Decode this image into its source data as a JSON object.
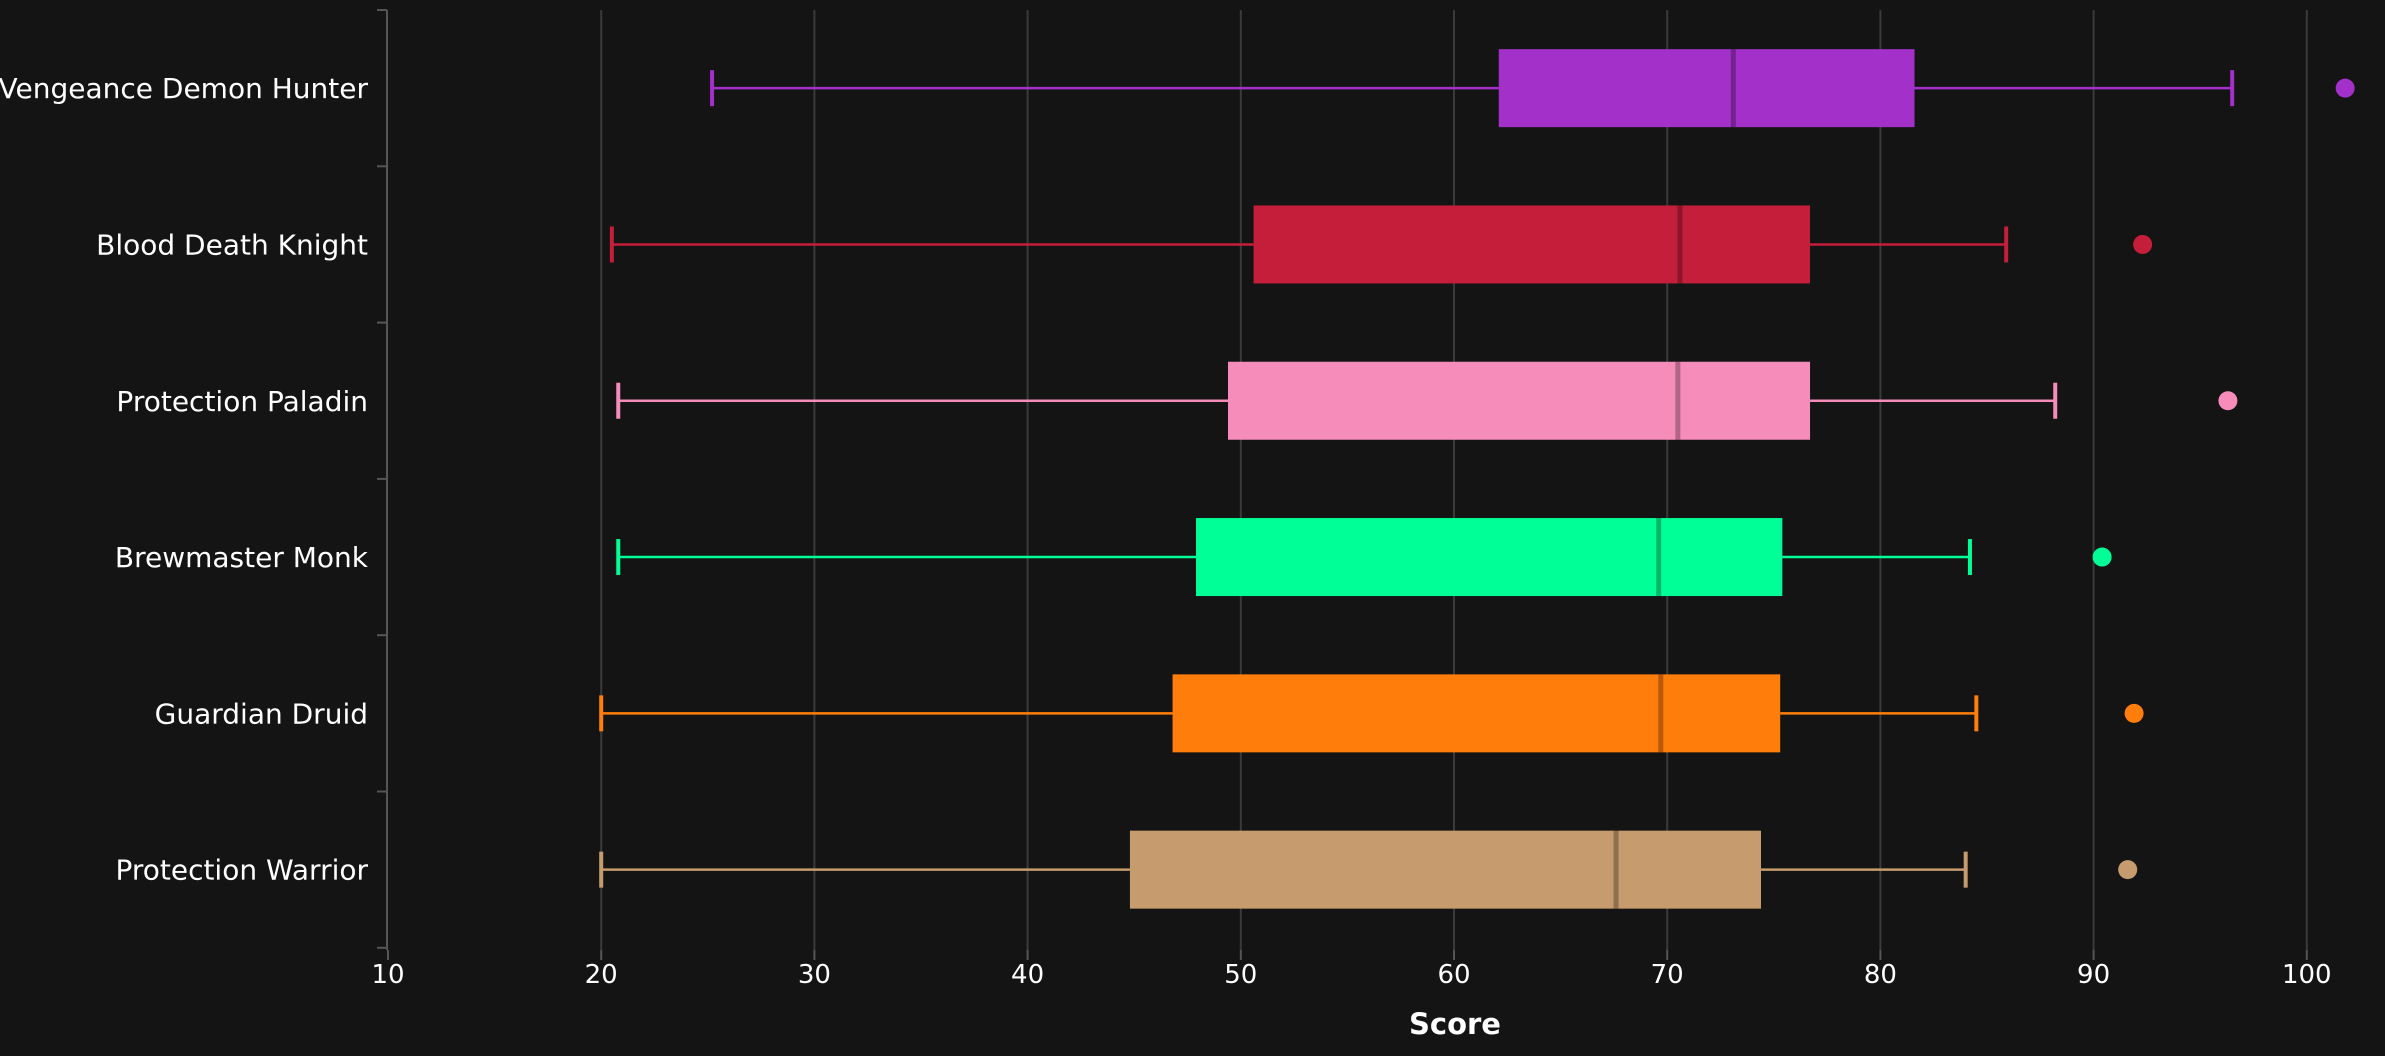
{
  "chart_data": {
    "type": "boxplot",
    "orientation": "horizontal",
    "xlabel": "Score",
    "xlim": [
      10,
      102
    ],
    "xticks": [
      10,
      20,
      30,
      40,
      50,
      60,
      70,
      80,
      90,
      100
    ],
    "grid": true,
    "series": [
      {
        "name": "Vengeance Demon Hunter",
        "color": "#a330c9",
        "whisker_low": 25.2,
        "q1": 62.1,
        "median": 73.1,
        "q3": 81.6,
        "whisker_high": 96.5,
        "outliers": [
          101.8
        ]
      },
      {
        "name": "Blood Death Knight",
        "color": "#c41e3a",
        "whisker_low": 20.5,
        "q1": 50.6,
        "median": 70.6,
        "q3": 76.7,
        "whisker_high": 85.9,
        "outliers": [
          92.3
        ]
      },
      {
        "name": "Protection Paladin",
        "color": "#f58cba",
        "whisker_low": 20.8,
        "q1": 49.4,
        "median": 70.5,
        "q3": 76.7,
        "whisker_high": 88.2,
        "outliers": [
          96.3
        ]
      },
      {
        "name": "Brewmaster Monk",
        "color": "#00ff96",
        "whisker_low": 20.8,
        "q1": 47.9,
        "median": 69.6,
        "q3": 75.4,
        "whisker_high": 84.2,
        "outliers": [
          90.4
        ]
      },
      {
        "name": "Guardian Druid",
        "color": "#ff7d0a",
        "whisker_low": 20.0,
        "q1": 46.8,
        "median": 69.7,
        "q3": 75.3,
        "whisker_high": 84.5,
        "outliers": [
          91.9
        ]
      },
      {
        "name": "Protection Warrior",
        "color": "#c69b6d",
        "whisker_low": 20.0,
        "q1": 44.8,
        "median": 67.6,
        "q3": 74.4,
        "whisker_high": 84.0,
        "outliers": [
          91.6
        ]
      }
    ]
  }
}
